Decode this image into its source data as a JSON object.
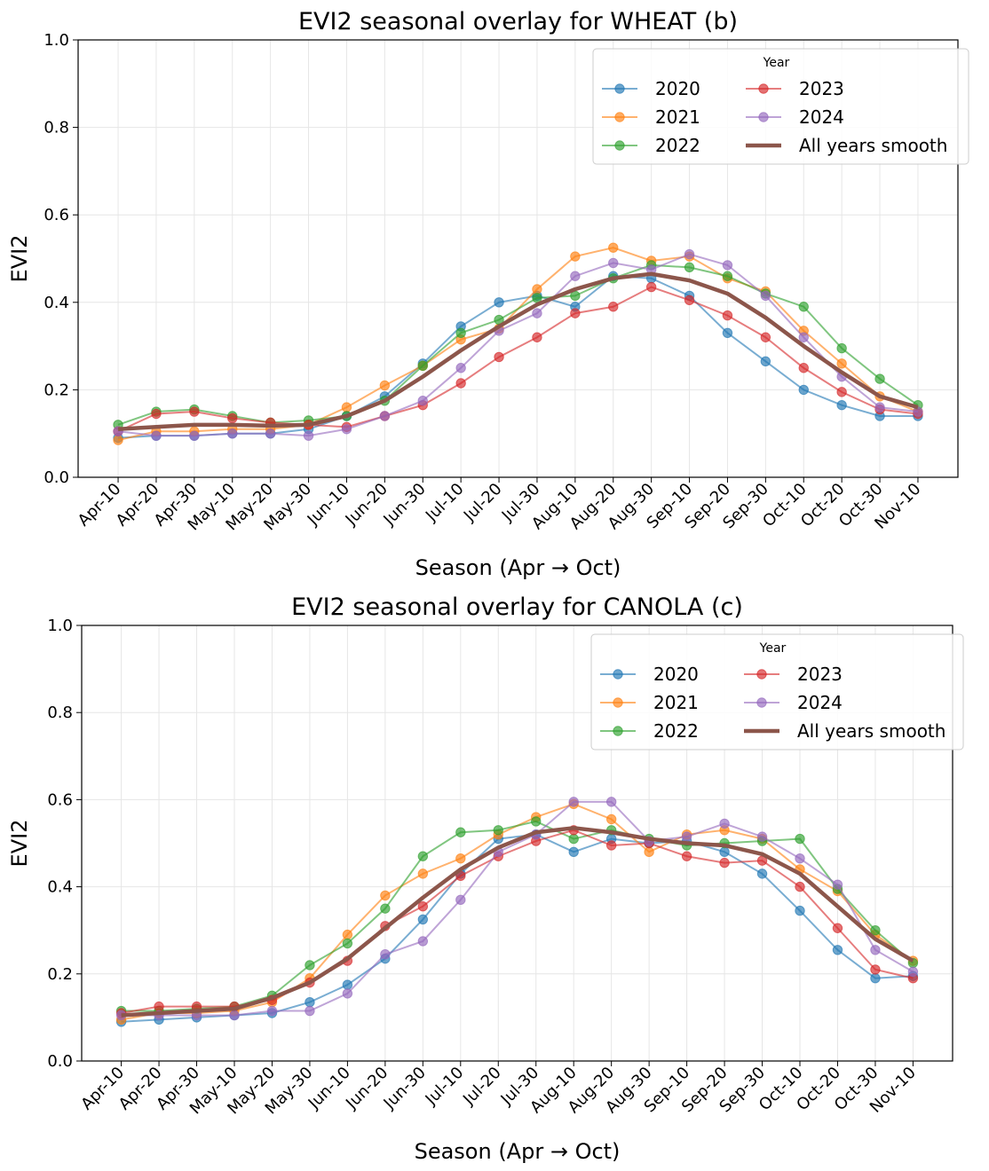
{
  "chart_data": [
    {
      "id": "wheat",
      "type": "line",
      "title": "EVI2 seasonal overlay for WHEAT (b)",
      "xlabel": "Season (Apr → Oct)",
      "ylabel": "EVI2",
      "ylim": [
        0.0,
        1.0
      ],
      "yticks": [
        "0.0",
        "0.2",
        "0.4",
        "0.6",
        "0.8",
        "1.0"
      ],
      "grid": true,
      "legend": {
        "title": "Year",
        "placement": "top-right",
        "columns": 2
      },
      "categories": [
        "Apr-10",
        "Apr-20",
        "Apr-30",
        "May-10",
        "May-20",
        "May-30",
        "Jun-10",
        "Jun-20",
        "Jun-30",
        "Jul-10",
        "Jul-20",
        "Jul-30",
        "Aug-10",
        "Aug-20",
        "Aug-30",
        "Sep-10",
        "Sep-20",
        "Sep-30",
        "Oct-10",
        "Oct-20",
        "Oct-30",
        "Nov-10"
      ],
      "series": [
        {
          "name": "2020",
          "color": "#1f77b4",
          "style": "markers",
          "values": [
            0.09,
            0.095,
            0.095,
            0.1,
            0.1,
            0.11,
            0.14,
            0.185,
            0.26,
            0.345,
            0.4,
            0.415,
            0.39,
            0.46,
            0.455,
            0.415,
            0.33,
            0.265,
            0.2,
            0.165,
            0.14,
            0.14
          ]
        },
        {
          "name": "2021",
          "color": "#ff7f0e",
          "style": "markers",
          "values": [
            0.085,
            0.105,
            0.105,
            0.11,
            0.11,
            0.12,
            0.16,
            0.21,
            0.255,
            0.315,
            0.34,
            0.43,
            0.505,
            0.525,
            0.495,
            0.505,
            0.455,
            0.425,
            0.335,
            0.26,
            0.185,
            0.15
          ]
        },
        {
          "name": "2022",
          "color": "#2ca02c",
          "style": "markers",
          "values": [
            0.12,
            0.15,
            0.155,
            0.14,
            0.125,
            0.13,
            0.14,
            0.175,
            0.255,
            0.33,
            0.36,
            0.41,
            0.415,
            0.455,
            0.485,
            0.48,
            0.46,
            0.42,
            0.39,
            0.295,
            0.225,
            0.165
          ]
        },
        {
          "name": "2023",
          "color": "#d62728",
          "style": "markers",
          "values": [
            0.105,
            0.145,
            0.15,
            0.135,
            0.125,
            0.12,
            0.115,
            0.14,
            0.165,
            0.215,
            0.275,
            0.32,
            0.375,
            0.39,
            0.435,
            0.405,
            0.37,
            0.32,
            0.25,
            0.195,
            0.155,
            0.145
          ]
        },
        {
          "name": "2024",
          "color": "#9467bd",
          "style": "markers",
          "values": [
            0.105,
            0.095,
            0.095,
            0.1,
            0.1,
            0.095,
            0.11,
            0.14,
            0.175,
            0.25,
            0.335,
            0.375,
            0.46,
            0.49,
            0.475,
            0.51,
            0.485,
            0.415,
            0.32,
            0.23,
            0.16,
            0.15
          ]
        },
        {
          "name": "All years smooth",
          "color": "#8c564b",
          "style": "thick",
          "values": [
            0.11,
            0.115,
            0.12,
            0.12,
            0.118,
            0.12,
            0.14,
            0.175,
            0.23,
            0.29,
            0.345,
            0.395,
            0.43,
            0.455,
            0.465,
            0.45,
            0.42,
            0.365,
            0.3,
            0.24,
            0.185,
            0.16
          ]
        }
      ]
    },
    {
      "id": "canola",
      "type": "line",
      "title": "EVI2 seasonal overlay for CANOLA (c)",
      "xlabel": "Season (Apr → Oct)",
      "ylabel": "EVI2",
      "ylim": [
        0.0,
        1.0
      ],
      "yticks": [
        "0.0",
        "0.2",
        "0.4",
        "0.6",
        "0.8",
        "1.0"
      ],
      "grid": true,
      "legend": {
        "title": "Year",
        "placement": "top-right",
        "columns": 2
      },
      "categories": [
        "Apr-10",
        "Apr-20",
        "Apr-30",
        "May-10",
        "May-20",
        "May-30",
        "Jun-10",
        "Jun-20",
        "Jun-30",
        "Jul-10",
        "Jul-20",
        "Jul-30",
        "Aug-10",
        "Aug-20",
        "Aug-30",
        "Sep-10",
        "Sep-20",
        "Sep-30",
        "Oct-10",
        "Oct-20",
        "Oct-30",
        "Nov-10"
      ],
      "series": [
        {
          "name": "2020",
          "color": "#1f77b4",
          "style": "markers",
          "values": [
            0.09,
            0.095,
            0.1,
            0.105,
            0.11,
            0.135,
            0.175,
            0.235,
            0.325,
            0.43,
            0.51,
            0.52,
            0.48,
            0.51,
            0.5,
            0.505,
            0.48,
            0.43,
            0.345,
            0.255,
            0.19,
            0.195
          ]
        },
        {
          "name": "2021",
          "color": "#ff7f0e",
          "style": "markers",
          "values": [
            0.095,
            0.11,
            0.11,
            0.115,
            0.135,
            0.19,
            0.29,
            0.38,
            0.43,
            0.465,
            0.52,
            0.56,
            0.59,
            0.555,
            0.48,
            0.52,
            0.53,
            0.51,
            0.44,
            0.39,
            0.29,
            0.23
          ]
        },
        {
          "name": "2022",
          "color": "#2ca02c",
          "style": "markers",
          "values": [
            0.115,
            0.115,
            0.12,
            0.125,
            0.15,
            0.22,
            0.27,
            0.35,
            0.47,
            0.525,
            0.53,
            0.55,
            0.51,
            0.53,
            0.51,
            0.495,
            0.5,
            0.505,
            0.51,
            0.395,
            0.3,
            0.225
          ]
        },
        {
          "name": "2023",
          "color": "#d62728",
          "style": "markers",
          "values": [
            0.11,
            0.125,
            0.125,
            0.125,
            0.14,
            0.18,
            0.23,
            0.31,
            0.355,
            0.425,
            0.47,
            0.505,
            0.53,
            0.495,
            0.5,
            0.47,
            0.455,
            0.46,
            0.4,
            0.305,
            0.21,
            0.19
          ]
        },
        {
          "name": "2024",
          "color": "#9467bd",
          "style": "markers",
          "values": [
            0.105,
            0.105,
            0.105,
            0.105,
            0.115,
            0.115,
            0.155,
            0.245,
            0.275,
            0.37,
            0.48,
            0.52,
            0.595,
            0.595,
            0.505,
            0.515,
            0.545,
            0.515,
            0.465,
            0.405,
            0.255,
            0.205
          ]
        },
        {
          "name": "All years smooth",
          "color": "#8c564b",
          "style": "thick",
          "values": [
            0.105,
            0.11,
            0.115,
            0.12,
            0.145,
            0.18,
            0.235,
            0.305,
            0.375,
            0.44,
            0.49,
            0.525,
            0.535,
            0.525,
            0.51,
            0.5,
            0.495,
            0.475,
            0.43,
            0.355,
            0.28,
            0.23
          ]
        }
      ]
    }
  ]
}
